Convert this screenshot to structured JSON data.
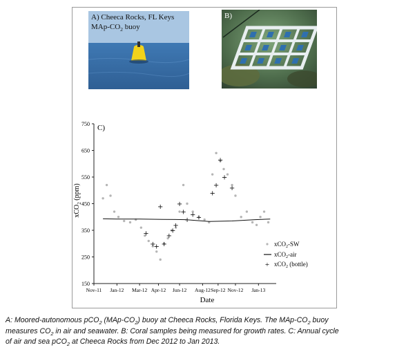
{
  "photos": {
    "a": {
      "label_line1": "A) Cheeca Rocks, FL Keys",
      "label_line2_pre": "MAp-CO",
      "label_line2_sub": "2",
      "label_line2_post": " buoy"
    },
    "b": {
      "label": "B)"
    }
  },
  "colors": {
    "sw_points": "#b5b5b5",
    "air_line": "#111111",
    "bottle": "#111111",
    "sea_top": "#3f79b4",
    "sea_bottom": "#2f5f94",
    "sky": "#a9c6e2",
    "buoy": "#f2d21b",
    "reef": "#5d6b3e"
  },
  "chart_data": {
    "type": "scatter",
    "panel_label": "C)",
    "xlabel": "Date",
    "ylabel_pre": "xCO",
    "ylabel_sub": "2",
    "ylabel_post": " (ppm)",
    "ylim": [
      150,
      750
    ],
    "yticks": [
      150,
      250,
      350,
      450,
      550,
      650,
      750
    ],
    "xlim": [
      "2011-11-01",
      "2013-02-15"
    ],
    "xticks": [
      {
        "label": "Nov-11",
        "date": "2011-11-01"
      },
      {
        "label": "Jan-12",
        "date": "2012-01-01"
      },
      {
        "label": "Mar-12",
        "date": "2012-03-01"
      },
      {
        "label": "Apr-12",
        "date": "2012-04-20"
      },
      {
        "label": "Jun-12",
        "date": "2012-06-15"
      },
      {
        "label": "Aug-12",
        "date": "2012-08-15"
      },
      {
        "label": "Sep-12",
        "date": "2012-09-25"
      },
      {
        "label": "Nov-12",
        "date": "2012-11-10"
      },
      {
        "label": "Jan-13",
        "date": "2013-01-10"
      }
    ],
    "legend": [
      {
        "key": "sw",
        "pre": "xCO",
        "sub": "2",
        "post": "-SW"
      },
      {
        "key": "air",
        "pre": "xCO",
        "sub": "2",
        "post": "-air"
      },
      {
        "key": "bottle",
        "pre": "xCO",
        "sub": "2",
        "post": " (bottle)"
      }
    ],
    "series": [
      {
        "name": "xCO2-SW",
        "style": "points",
        "x": [
          "2011-11-25",
          "2011-12-05",
          "2011-12-15",
          "2011-12-25",
          "2012-01-05",
          "2012-01-20",
          "2012-02-05",
          "2012-02-20",
          "2012-03-05",
          "2012-03-15",
          "2012-03-25",
          "2012-04-05",
          "2012-04-15",
          "2012-04-25",
          "2012-05-05",
          "2012-05-15",
          "2012-05-25",
          "2012-06-05",
          "2012-06-15",
          "2012-06-25",
          "2012-07-05",
          "2012-07-20",
          "2012-08-05",
          "2012-08-20",
          "2012-09-01",
          "2012-09-10",
          "2012-09-20",
          "2012-10-01",
          "2012-10-10",
          "2012-10-20",
          "2012-11-01",
          "2012-11-10",
          "2012-11-25",
          "2012-12-10",
          "2012-12-25",
          "2013-01-05",
          "2013-01-15",
          "2013-01-25",
          "2013-02-05"
        ],
        "y": [
          470,
          520,
          480,
          420,
          400,
          385,
          380,
          390,
          360,
          330,
          310,
          290,
          270,
          240,
          300,
          320,
          350,
          360,
          420,
          520,
          450,
          420,
          400,
          390,
          380,
          560,
          640,
          610,
          580,
          560,
          520,
          480,
          400,
          420,
          380,
          370,
          400,
          420,
          380
        ]
      },
      {
        "name": "xCO2-air",
        "style": "line",
        "x": [
          "2011-11-25",
          "2012-01-01",
          "2012-03-01",
          "2012-05-01",
          "2012-07-01",
          "2012-09-01",
          "2012-11-01",
          "2013-01-01",
          "2013-02-10"
        ],
        "y": [
          393,
          392,
          392,
          391,
          390,
          383,
          385,
          390,
          392
        ]
      },
      {
        "name": "xCO2 (bottle)",
        "style": "markers",
        "x": [
          "2012-03-18",
          "2012-04-05",
          "2012-04-15",
          "2012-04-25",
          "2012-05-05",
          "2012-05-18",
          "2012-05-28",
          "2012-06-05",
          "2012-06-15",
          "2012-06-25",
          "2012-07-05",
          "2012-07-20",
          "2012-08-05",
          "2012-09-10",
          "2012-09-20",
          "2012-10-01",
          "2012-10-12",
          "2012-11-01"
        ],
        "y": [
          340,
          300,
          290,
          440,
          300,
          330,
          350,
          370,
          450,
          420,
          390,
          410,
          400,
          490,
          520,
          615,
          550,
          510
        ]
      }
    ]
  },
  "caption": {
    "l1a": "A: Moored-autonomous pCO",
    "l1b": "2",
    "l1c": " (MAp-CO",
    "l1d": "2",
    "l1e": ") buoy at Cheeca Rocks, Florida Keys.  The MAp-CO",
    "l1f": "2",
    "l1g": " buoy",
    "l2a": "measures CO",
    "l2b": "2",
    "l2c": " in air and seawater.  B: Coral samples being measured for growth rates. C: Annual cycle",
    "l3a": "of air and sea pCO",
    "l3b": "2",
    "l3c": " at Cheeca Rocks from Dec 2012 to Jan 2013."
  }
}
